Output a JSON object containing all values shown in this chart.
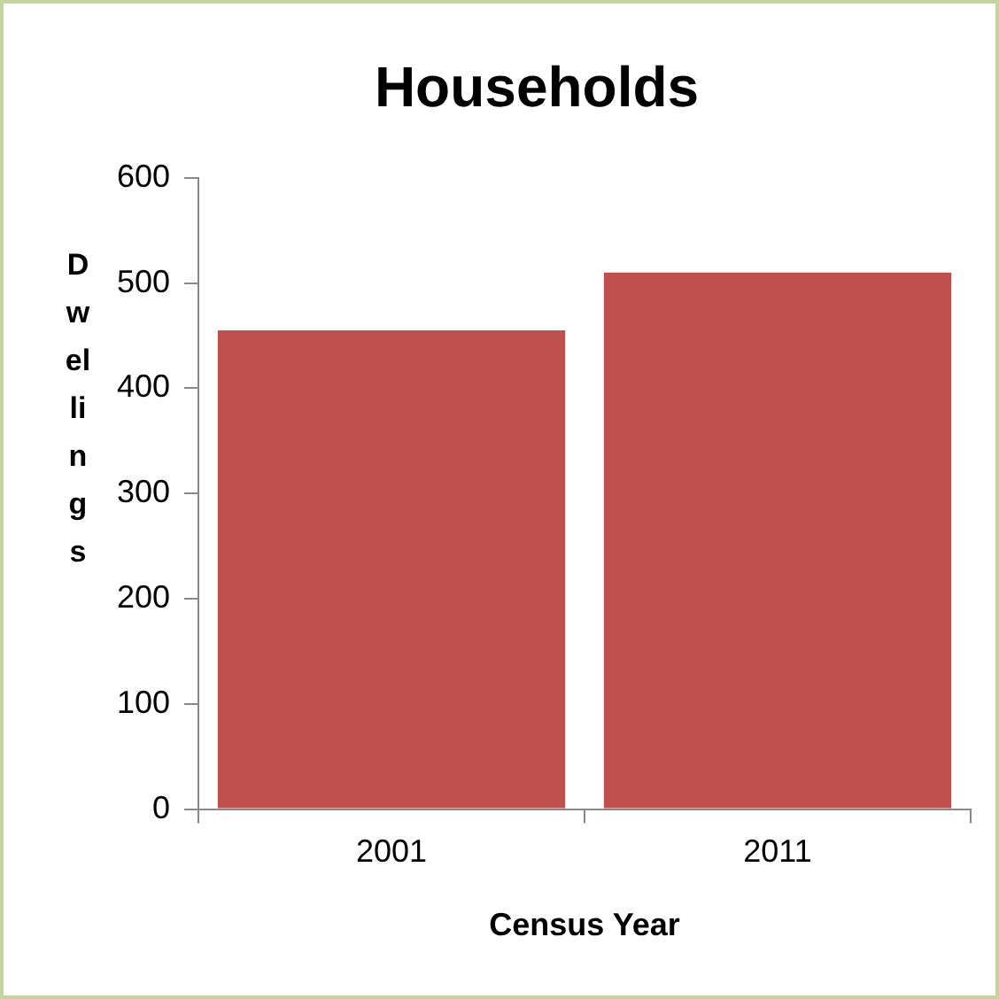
{
  "chart_data": {
    "type": "bar",
    "title": "Households",
    "xlabel": "Census Year",
    "ylabel": "Dwellings",
    "categories": [
      "2001",
      "2011"
    ],
    "values": [
      455,
      510
    ],
    "color": "#c0504d",
    "ylim": [
      0,
      600
    ],
    "yticks": [
      0,
      100,
      200,
      300,
      400,
      500,
      600
    ],
    "grid": false,
    "legend": false
  }
}
